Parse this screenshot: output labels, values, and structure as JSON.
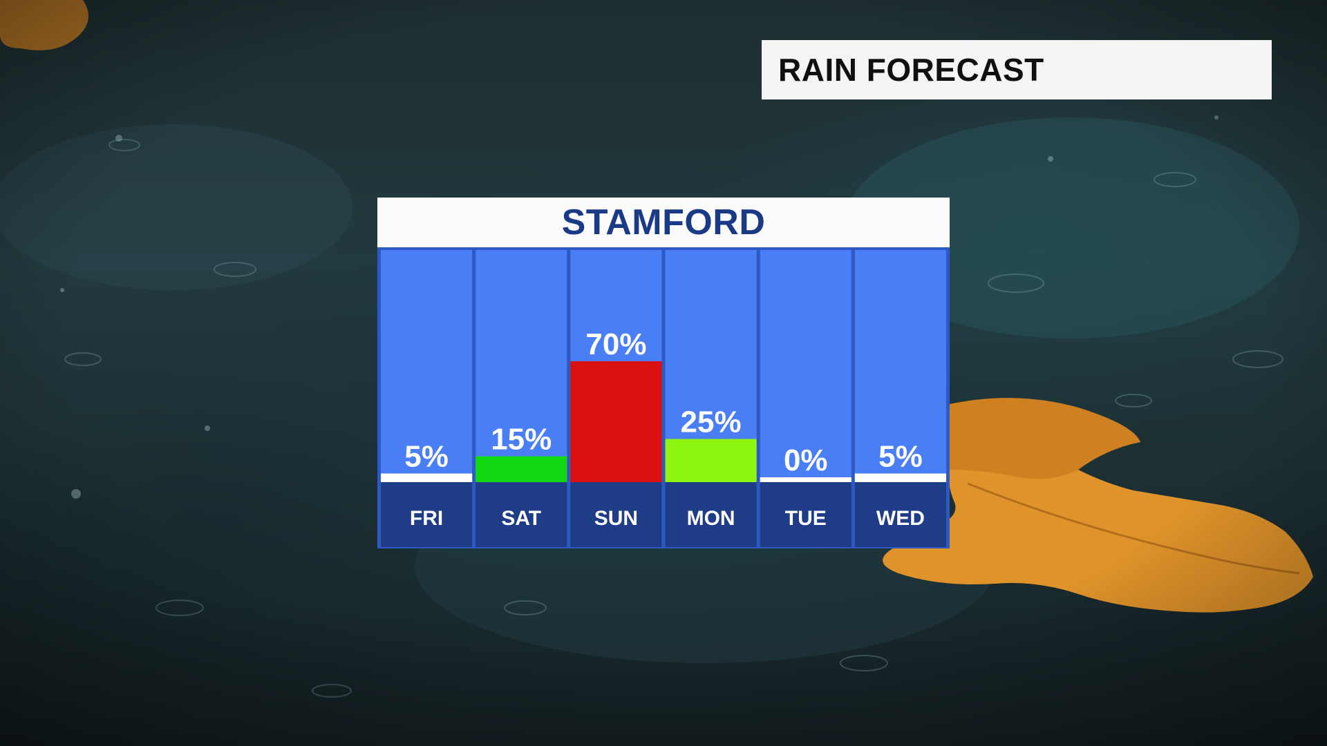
{
  "header": {
    "title": "RAIN FORECAST"
  },
  "chart_data": {
    "type": "bar",
    "title": "STAMFORD",
    "categories": [
      "FRI",
      "SAT",
      "SUN",
      "MON",
      "TUE",
      "WED"
    ],
    "values": [
      5,
      15,
      70,
      25,
      0,
      5
    ],
    "value_labels": [
      "5%",
      "15%",
      "70%",
      "25%",
      "0%",
      "5%"
    ],
    "ylim": [
      0,
      100
    ],
    "grid": false,
    "bar_colors": [
      "#ffffff",
      "#12d812",
      "#dc1010",
      "#8ef510",
      "#ffffff",
      "#ffffff"
    ]
  },
  "colors": {
    "column_background": "#4a7ef5",
    "day_label_background": "#1f3c86",
    "panel_border": "#2e58c4",
    "city_text": "#1a3a86",
    "label_text": "#ffffff"
  }
}
